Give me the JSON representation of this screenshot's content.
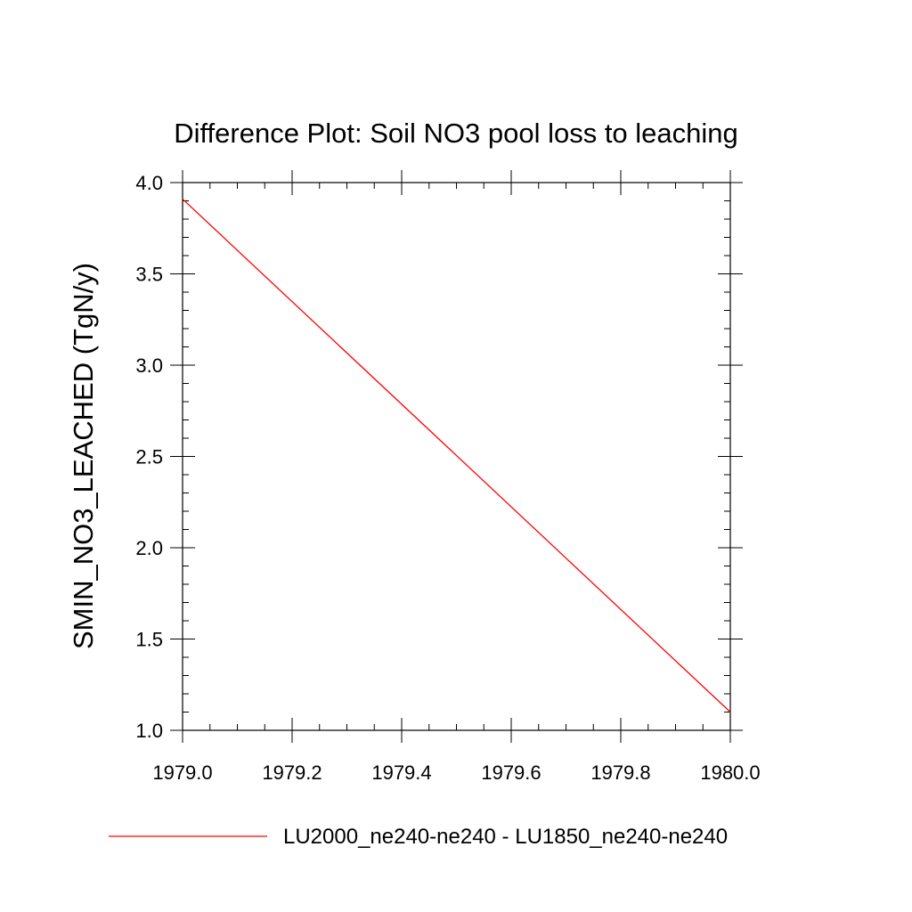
{
  "colors": {
    "series": "#ff0000",
    "axis": "#000000",
    "background": "#ffffff"
  },
  "chart_data": {
    "type": "line",
    "title": "Difference Plot: Soil NO3 pool loss to leaching",
    "xlabel": "",
    "ylabel": "SMIN_NO3_LEACHED  (TgN/y)",
    "xlim": [
      1979.0,
      1980.0
    ],
    "ylim": [
      1.0,
      4.0
    ],
    "x_ticks": [
      "1979.0",
      "1979.2",
      "1979.4",
      "1979.6",
      "1979.8",
      "1980.0"
    ],
    "y_ticks": [
      "1.0",
      "1.5",
      "2.0",
      "2.5",
      "3.0",
      "3.5",
      "4.0"
    ],
    "grid": false,
    "legend_position": "bottom",
    "series": [
      {
        "name": "LU2000_ne240-ne240 - LU1850_ne240-ne240",
        "color": "#ff0000",
        "x": [
          1979.0,
          1980.0
        ],
        "y": [
          3.91,
          1.1
        ]
      }
    ]
  }
}
